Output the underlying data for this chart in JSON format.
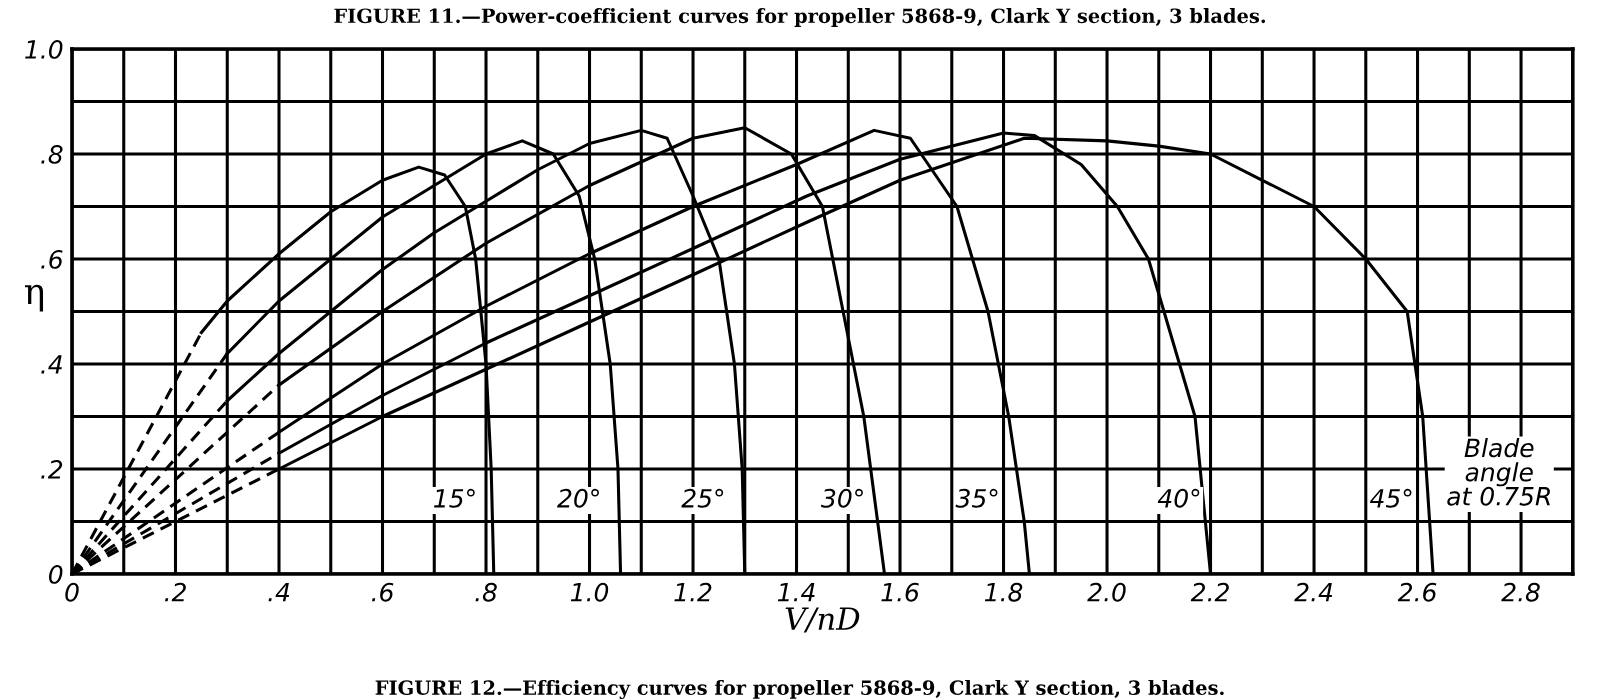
{
  "chart_data": {
    "type": "line",
    "xlabel": "V/nD",
    "ylabel": "η",
    "xlim": [
      0,
      2.9
    ],
    "ylim": [
      0,
      1.0
    ],
    "xticks": [
      {
        "value": 0,
        "label": "0"
      },
      {
        "value": 0.1,
        "label": null
      },
      {
        "value": 0.2,
        "label": ".2"
      },
      {
        "value": 0.3,
        "label": null
      },
      {
        "value": 0.4,
        "label": ".4"
      },
      {
        "value": 0.5,
        "label": null
      },
      {
        "value": 0.6,
        "label": ".6"
      },
      {
        "value": 0.7,
        "label": null
      },
      {
        "value": 0.8,
        "label": ".8"
      },
      {
        "value": 0.9,
        "label": null
      },
      {
        "value": 1.0,
        "label": "1.0"
      },
      {
        "value": 1.1,
        "label": null
      },
      {
        "value": 1.2,
        "label": "1.2"
      },
      {
        "value": 1.3,
        "label": null
      },
      {
        "value": 1.4,
        "label": "1.4"
      },
      {
        "value": 1.5,
        "label": null
      },
      {
        "value": 1.6,
        "label": "1.6"
      },
      {
        "value": 1.7,
        "label": null
      },
      {
        "value": 1.8,
        "label": "1.8"
      },
      {
        "value": 1.9,
        "label": null
      },
      {
        "value": 2.0,
        "label": "2.0"
      },
      {
        "value": 2.1,
        "label": null
      },
      {
        "value": 2.2,
        "label": "2.2"
      },
      {
        "value": 2.3,
        "label": null
      },
      {
        "value": 2.4,
        "label": "2.4"
      },
      {
        "value": 2.5,
        "label": null
      },
      {
        "value": 2.6,
        "label": "2.6"
      },
      {
        "value": 2.7,
        "label": null
      },
      {
        "value": 2.8,
        "label": "2.8"
      },
      {
        "value": 2.9,
        "label": null
      }
    ],
    "yticks": [
      {
        "value": 0,
        "label": "0"
      },
      {
        "value": 0.1,
        "label": null
      },
      {
        "value": 0.2,
        "label": ".2"
      },
      {
        "value": 0.3,
        "label": null
      },
      {
        "value": 0.4,
        "label": ".4"
      },
      {
        "value": 0.5,
        "label": null
      },
      {
        "value": 0.6,
        "label": ".6"
      },
      {
        "value": 0.7,
        "label": null
      },
      {
        "value": 0.8,
        "label": ".8"
      },
      {
        "value": 0.9,
        "label": null
      },
      {
        "value": 1.0,
        "label": "1.0"
      }
    ],
    "grid": true,
    "legend": false,
    "marker": "none",
    "series": [
      {
        "color": "#000000",
        "line_style": "dashed",
        "x": [
          0,
          0.25
        ],
        "values": [
          0,
          0.46
        ]
      },
      {
        "color": "#000000",
        "line_style": "solid",
        "x": [
          0.25,
          0.3,
          0.4,
          0.5,
          0.6,
          0.67,
          0.72,
          0.76,
          0.78,
          0.8,
          0.81,
          0.815
        ],
        "values": [
          0.46,
          0.52,
          0.61,
          0.69,
          0.75,
          0.775,
          0.76,
          0.7,
          0.6,
          0.4,
          0.2,
          0
        ]
      },
      {
        "color": "#000000",
        "line_style": "dashed",
        "x": [
          0,
          0.3
        ],
        "values": [
          0,
          0.42
        ]
      },
      {
        "color": "#000000",
        "line_style": "solid",
        "x": [
          0.3,
          0.4,
          0.5,
          0.6,
          0.7,
          0.8,
          0.87,
          0.93,
          0.98,
          1.01,
          1.04,
          1.055,
          1.06
        ],
        "values": [
          0.42,
          0.52,
          0.6,
          0.68,
          0.74,
          0.8,
          0.825,
          0.8,
          0.72,
          0.6,
          0.4,
          0.2,
          0
        ]
      },
      {
        "color": "#000000",
        "line_style": "dashed",
        "x": [
          0,
          0.3
        ],
        "values": [
          0,
          0.33
        ]
      },
      {
        "color": "#000000",
        "line_style": "solid",
        "x": [
          0.3,
          0.4,
          0.5,
          0.6,
          0.7,
          0.8,
          0.9,
          1.0,
          1.1,
          1.15,
          1.2,
          1.25,
          1.28,
          1.295,
          1.3
        ],
        "values": [
          0.33,
          0.42,
          0.5,
          0.58,
          0.65,
          0.71,
          0.77,
          0.82,
          0.845,
          0.83,
          0.72,
          0.6,
          0.4,
          0.2,
          0
        ]
      },
      {
        "color": "#000000",
        "line_style": "dashed",
        "x": [
          0,
          0.4
        ],
        "values": [
          0,
          0.36
        ]
      },
      {
        "color": "#000000",
        "line_style": "solid",
        "x": [
          0.4,
          0.6,
          0.8,
          1.0,
          1.2,
          1.3,
          1.39,
          1.45,
          1.49,
          1.53,
          1.57
        ],
        "values": [
          0.36,
          0.5,
          0.63,
          0.74,
          0.83,
          0.85,
          0.8,
          0.7,
          0.5,
          0.3,
          0
        ]
      },
      {
        "color": "#000000",
        "line_style": "dashed",
        "x": [
          0,
          0.4
        ],
        "values": [
          0,
          0.27
        ]
      },
      {
        "color": "#000000",
        "line_style": "solid",
        "x": [
          0.4,
          0.6,
          0.8,
          1.0,
          1.2,
          1.4,
          1.55,
          1.62,
          1.71,
          1.77,
          1.81,
          1.84,
          1.85
        ],
        "values": [
          0.27,
          0.4,
          0.51,
          0.61,
          0.7,
          0.78,
          0.845,
          0.83,
          0.7,
          0.5,
          0.3,
          0.1,
          0
        ]
      },
      {
        "color": "#000000",
        "line_style": "dashed",
        "x": [
          0,
          0.4
        ],
        "values": [
          0,
          0.23
        ]
      },
      {
        "color": "#000000",
        "line_style": "solid",
        "x": [
          0.4,
          0.6,
          0.8,
          1.0,
          1.2,
          1.42,
          1.6,
          1.8,
          1.86,
          1.95,
          2.02,
          2.08,
          2.11,
          2.17,
          2.2
        ],
        "values": [
          0.23,
          0.34,
          0.44,
          0.53,
          0.62,
          0.72,
          0.79,
          0.84,
          0.835,
          0.78,
          0.7,
          0.6,
          0.5,
          0.3,
          0
        ]
      },
      {
        "color": "#000000",
        "line_style": "dashed",
        "x": [
          0,
          0.4
        ],
        "values": [
          0,
          0.2
        ]
      },
      {
        "color": "#000000",
        "line_style": "solid",
        "x": [
          0.4,
          0.6,
          0.8,
          1.0,
          1.2,
          1.42,
          1.6,
          1.84,
          2.0,
          2.1,
          2.2,
          2.4,
          2.5,
          2.58,
          2.61,
          2.63
        ],
        "values": [
          0.2,
          0.3,
          0.39,
          0.48,
          0.57,
          0.67,
          0.75,
          0.83,
          0.825,
          0.815,
          0.8,
          0.7,
          0.6,
          0.5,
          0.3,
          0
        ]
      }
    ],
    "annotations": [
      "FIGURE 11.—Power-coefficient curves for propeller 5868-9, Clark Y section, 3 blades.",
      "FIGURE 12.—Efficiency curves for propeller 5868-9, Clark Y section, 3 blades.",
      {
        "text": "15°",
        "x": 0.74,
        "y": 0.14
      },
      {
        "text": "20°",
        "x": 0.98,
        "y": 0.14
      },
      {
        "text": "25°",
        "x": 1.22,
        "y": 0.14
      },
      {
        "text": "30°",
        "x": 1.49,
        "y": 0.14
      },
      {
        "text": "35°",
        "x": 1.75,
        "y": 0.14
      },
      {
        "text": "40°",
        "x": 2.14,
        "y": 0.14
      },
      {
        "text": "45°",
        "x": 2.55,
        "y": 0.14
      },
      "Blade\nangle\nat 0.75R"
    ]
  }
}
